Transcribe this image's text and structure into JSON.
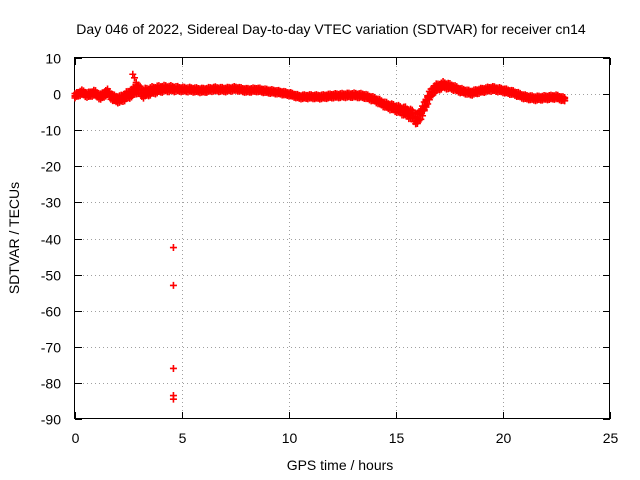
{
  "chart_data": {
    "type": "scatter",
    "title": "Day 046 of 2022, Sidereal Day-to-day VTEC variation (SDTVAR) for receiver cn14",
    "xlabel": "GPS time / hours",
    "ylabel": "SDTVAR / TECUs",
    "xlim": [
      0,
      25
    ],
    "ylim": [
      -90,
      10
    ],
    "xticks": [
      0,
      5,
      10,
      15,
      20,
      25
    ],
    "yticks": [
      10,
      0,
      -10,
      -20,
      -30,
      -40,
      -50,
      -60,
      -70,
      -80,
      -90
    ],
    "grid": true,
    "marker": "plus",
    "color": "#ff0000",
    "series": [
      {
        "name": "SDTVAR",
        "trace": [
          [
            0.0,
            -0.5
          ],
          [
            0.3,
            0.5
          ],
          [
            0.6,
            -0.3
          ],
          [
            0.9,
            0.4
          ],
          [
            1.2,
            -0.8
          ],
          [
            1.5,
            0.6
          ],
          [
            1.8,
            -1.2
          ],
          [
            2.1,
            -1.5
          ],
          [
            2.4,
            -0.5
          ],
          [
            2.7,
            0.5
          ],
          [
            2.9,
            1.5
          ],
          [
            3.2,
            0.2
          ],
          [
            3.5,
            0.8
          ],
          [
            3.8,
            1.2
          ],
          [
            4.1,
            1.5
          ],
          [
            4.5,
            1.5
          ],
          [
            5.0,
            1.3
          ],
          [
            5.5,
            1.2
          ],
          [
            6.0,
            1.0
          ],
          [
            6.5,
            1.4
          ],
          [
            7.0,
            1.2
          ],
          [
            7.5,
            1.5
          ],
          [
            8.0,
            1.0
          ],
          [
            8.5,
            1.2
          ],
          [
            9.0,
            0.8
          ],
          [
            9.5,
            0.5
          ],
          [
            10.0,
            0.0
          ],
          [
            10.5,
            -0.8
          ],
          [
            11.0,
            -0.7
          ],
          [
            11.5,
            -0.8
          ],
          [
            12.0,
            -0.5
          ],
          [
            12.5,
            -0.4
          ],
          [
            13.0,
            -0.3
          ],
          [
            13.5,
            -0.5
          ],
          [
            14.0,
            -1.5
          ],
          [
            14.5,
            -3.0
          ],
          [
            15.0,
            -4.0
          ],
          [
            15.5,
            -5.0
          ],
          [
            15.8,
            -6.0
          ],
          [
            16.0,
            -7.0
          ],
          [
            16.3,
            -4.0
          ],
          [
            16.5,
            -1.0
          ],
          [
            16.8,
            1.5
          ],
          [
            17.2,
            2.5
          ],
          [
            17.6,
            2.0
          ],
          [
            18.0,
            1.0
          ],
          [
            18.5,
            0.3
          ],
          [
            19.0,
            1.0
          ],
          [
            19.5,
            1.5
          ],
          [
            20.0,
            1.0
          ],
          [
            20.5,
            0.3
          ],
          [
            21.0,
            -0.8
          ],
          [
            21.5,
            -1.2
          ],
          [
            22.0,
            -1.0
          ],
          [
            22.5,
            -0.8
          ],
          [
            22.9,
            -1.5
          ]
        ],
        "spread": [
          [
            0.0,
            1.0
          ],
          [
            1.0,
            1.2
          ],
          [
            2.0,
            1.5
          ],
          [
            3.0,
            2.0
          ],
          [
            4.0,
            1.5
          ],
          [
            5.0,
            1.0
          ],
          [
            10.0,
            0.8
          ],
          [
            14.0,
            1.0
          ],
          [
            15.0,
            1.5
          ],
          [
            16.0,
            2.5
          ],
          [
            17.0,
            1.5
          ],
          [
            18.0,
            1.0
          ],
          [
            23.0,
            0.9
          ]
        ],
        "spike": [
          [
            2.7,
            5.5
          ],
          [
            2.78,
            4.5
          ],
          [
            2.86,
            3.2
          ],
          [
            2.94,
            2.4
          ]
        ],
        "outliers": [
          [
            4.6,
            -42.5
          ],
          [
            4.6,
            -53.0
          ],
          [
            4.6,
            -76.0
          ],
          [
            4.6,
            -83.5
          ],
          [
            4.6,
            -84.5
          ]
        ]
      }
    ]
  }
}
